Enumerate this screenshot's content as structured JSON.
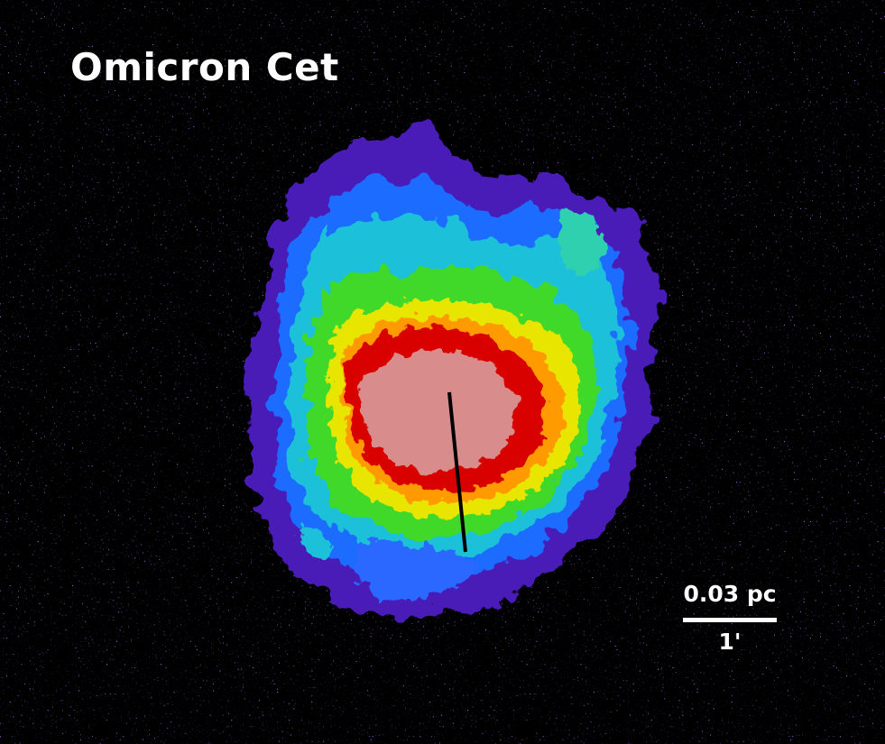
{
  "image": {
    "title": "Omicron Cet",
    "scale_bar": {
      "physical_label": "0.03 pc",
      "angular_label": "1'"
    },
    "colors": {
      "background": "#000000",
      "outer_halo": "#5a1fd8",
      "blue_layer": "#1f7cff",
      "cyan_layer": "#18c8d0",
      "green_layer": "#3fdc2a",
      "yellow_layer": "#e8e800",
      "orange_layer": "#ff9800",
      "red_ring": "#d70000",
      "saturated_core": "#d98a8a",
      "text": "#ffffff",
      "marker_line": "#000000"
    }
  }
}
